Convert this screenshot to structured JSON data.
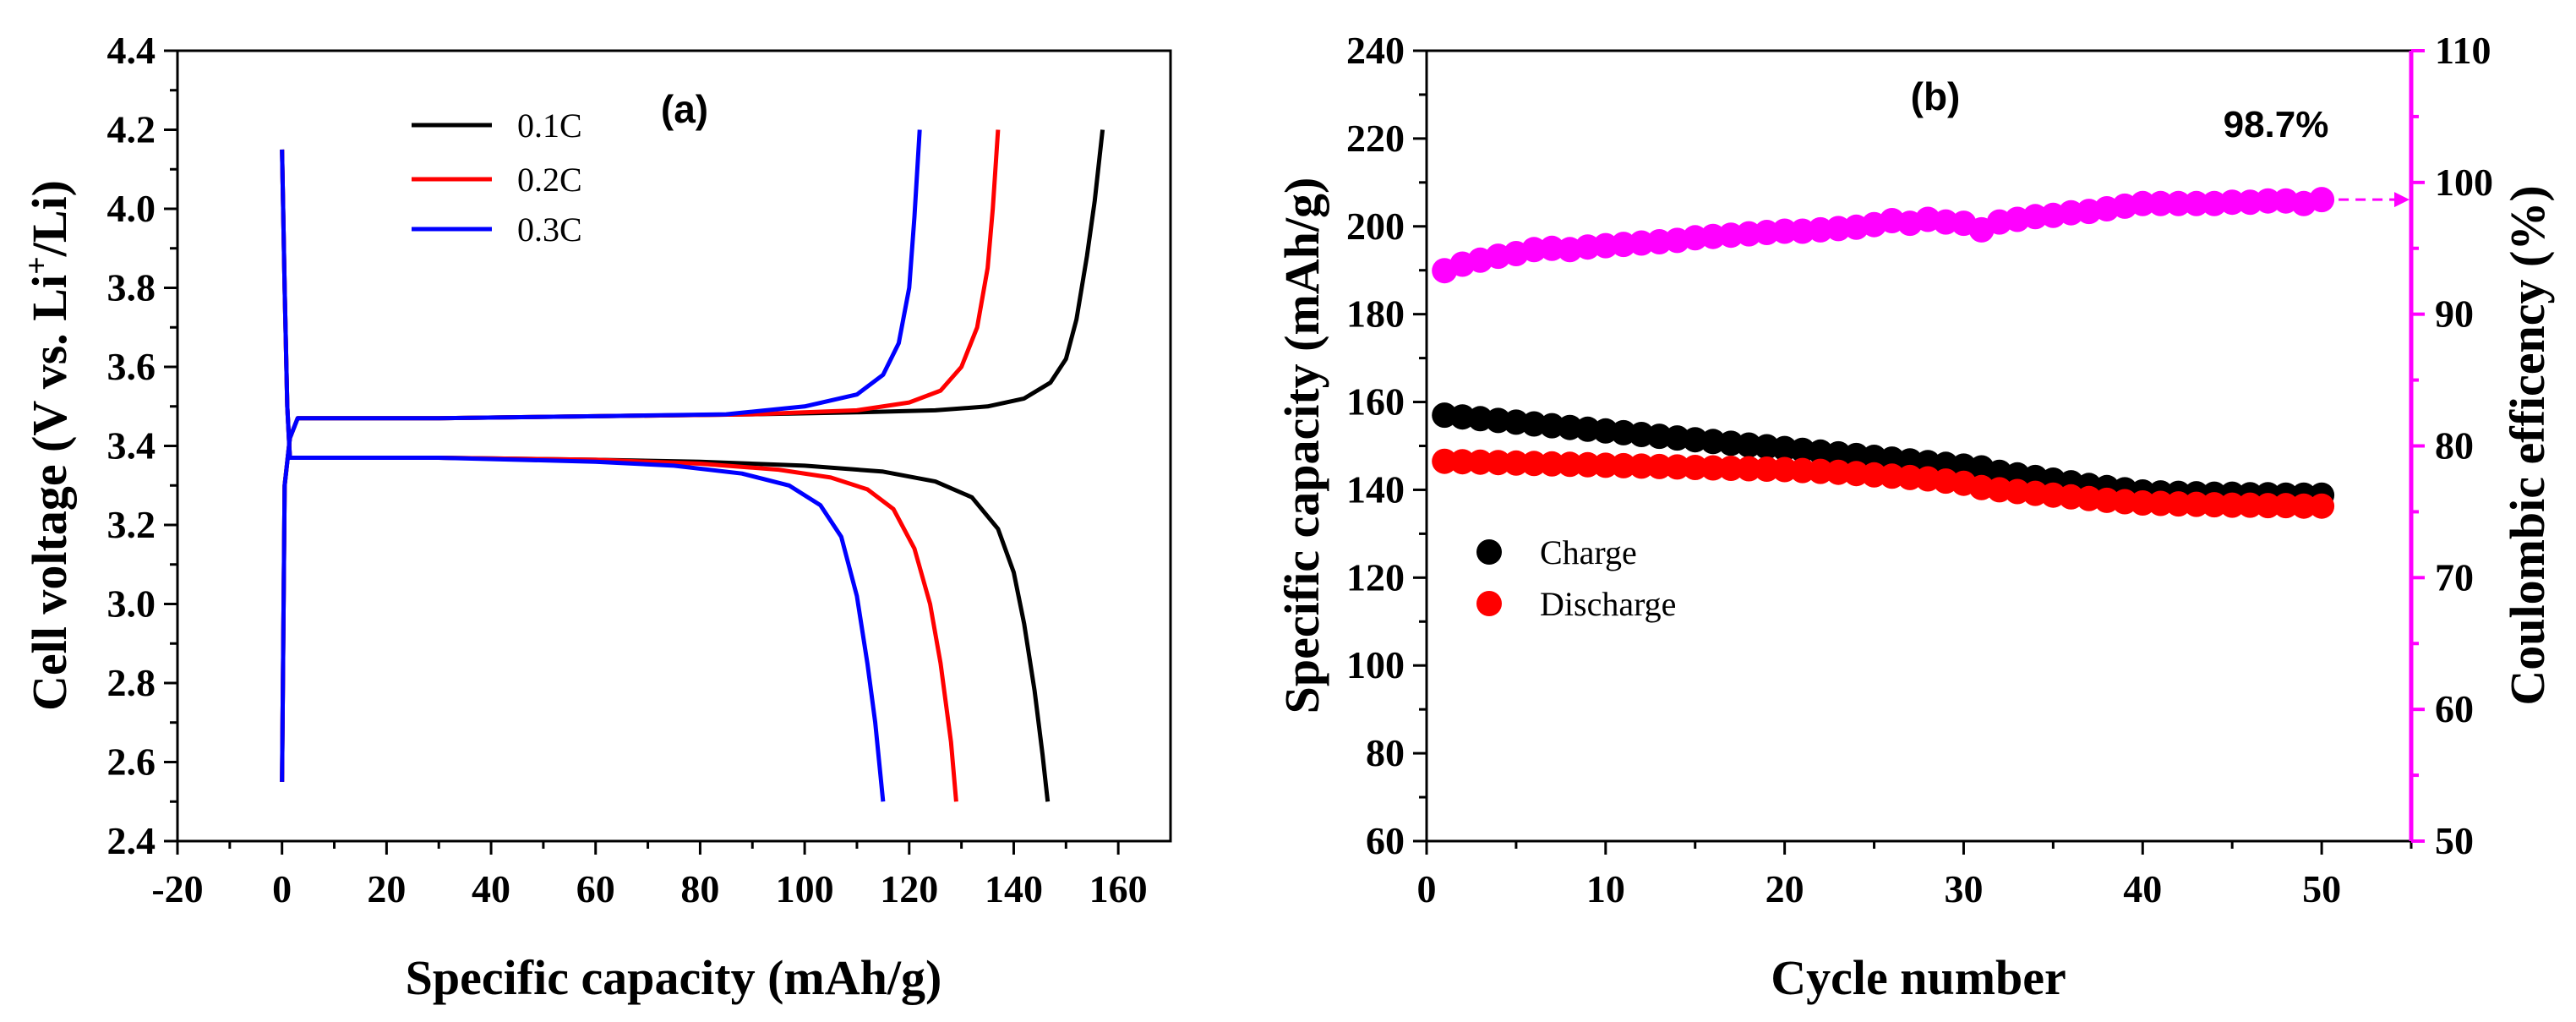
{
  "chart_data": [
    {
      "type": "line",
      "panel_label": "(a)",
      "xlabel": "Specific capacity (mAh/g)",
      "ylabel_main": "Cell voltage (V vs. Li",
      "ylabel_sup": "+",
      "ylabel_tail": "/Li)",
      "xlim": [
        -20,
        170
      ],
      "ylim": [
        2.4,
        4.4
      ],
      "xticks": [
        "-20",
        "0",
        "20",
        "40",
        "60",
        "80",
        "100",
        "120",
        "140",
        "160"
      ],
      "yticks": [
        "2.4",
        "2.6",
        "2.8",
        "3.0",
        "3.2",
        "3.4",
        "3.6",
        "3.8",
        "4.0",
        "4.2",
        "4.4"
      ],
      "xtick_values": [
        -20,
        0,
        20,
        40,
        60,
        80,
        100,
        120,
        140,
        160
      ],
      "ytick_values": [
        2.4,
        2.6,
        2.8,
        3.0,
        3.2,
        3.4,
        3.6,
        3.8,
        4.0,
        4.2,
        4.4
      ],
      "legend": {
        "position": "top-left"
      },
      "series": [
        {
          "name": "0.1C",
          "color": "#000000",
          "charge": {
            "x": [
              0,
              0.5,
              1.5,
              3,
              10,
              30,
              60,
              90,
              110,
              125,
              135,
              142,
              147,
              150,
              152,
              154,
              155.5,
              157
            ],
            "y": [
              2.55,
              3.3,
              3.42,
              3.47,
              3.47,
              3.47,
              3.475,
              3.48,
              3.485,
              3.49,
              3.5,
              3.52,
              3.56,
              3.62,
              3.72,
              3.88,
              4.02,
              4.2
            ]
          },
          "discharge": {
            "x": [
              0,
              0.5,
              1,
              1.5,
              3,
              10,
              30,
              60,
              80,
              100,
              115,
              125,
              132,
              137,
              140,
              142,
              144,
              145.5,
              146.5
            ],
            "y": [
              4.15,
              3.8,
              3.5,
              3.37,
              3.37,
              3.37,
              3.37,
              3.365,
              3.36,
              3.35,
              3.335,
              3.31,
              3.27,
              3.19,
              3.08,
              2.95,
              2.78,
              2.62,
              2.5
            ]
          }
        },
        {
          "name": "0.2C",
          "color": "#ff0000",
          "charge": {
            "x": [
              0,
              0.5,
              1.5,
              3,
              10,
              30,
              60,
              90,
              110,
              120,
              126,
              130,
              133,
              135,
              136,
              137
            ],
            "y": [
              2.55,
              3.3,
              3.42,
              3.47,
              3.47,
              3.47,
              3.475,
              3.48,
              3.49,
              3.51,
              3.54,
              3.6,
              3.7,
              3.85,
              4.0,
              4.2
            ]
          },
          "discharge": {
            "x": [
              0,
              0.5,
              1,
              1.5,
              3,
              10,
              30,
              60,
              80,
              95,
              105,
              112,
              117,
              121,
              124,
              126,
              128,
              129
            ],
            "y": [
              4.15,
              3.8,
              3.5,
              3.37,
              3.37,
              3.37,
              3.37,
              3.365,
              3.355,
              3.34,
              3.32,
              3.29,
              3.24,
              3.14,
              3.0,
              2.85,
              2.65,
              2.5
            ]
          }
        },
        {
          "name": "0.3C",
          "color": "#0000ff",
          "charge": {
            "x": [
              0,
              0.5,
              1.5,
              3,
              10,
              30,
              60,
              85,
              100,
              110,
              115,
              118,
              120,
              121,
              122
            ],
            "y": [
              2.55,
              3.3,
              3.42,
              3.47,
              3.47,
              3.47,
              3.475,
              3.48,
              3.5,
              3.53,
              3.58,
              3.66,
              3.8,
              3.98,
              4.2
            ]
          },
          "discharge": {
            "x": [
              0,
              0.5,
              1,
              1.5,
              3,
              10,
              30,
              60,
              75,
              88,
              97,
              103,
              107,
              110,
              112,
              113.5,
              115
            ],
            "y": [
              4.15,
              3.8,
              3.5,
              3.37,
              3.37,
              3.37,
              3.37,
              3.36,
              3.35,
              3.33,
              3.3,
              3.25,
              3.17,
              3.02,
              2.85,
              2.7,
              2.5
            ]
          }
        }
      ]
    },
    {
      "type": "scatter",
      "panel_label": "(b)",
      "xlabel": "Cycle number",
      "ylabel": "Specific capacity (mAh/g)",
      "ylabel_right": "Coulombic efficency (%)",
      "xlim": [
        0,
        55
      ],
      "ylim": [
        60,
        240
      ],
      "ylim_right": [
        50,
        110
      ],
      "xticks": [
        "0",
        "10",
        "20",
        "30",
        "40",
        "50"
      ],
      "yticks": [
        "60",
        "80",
        "100",
        "120",
        "140",
        "160",
        "180",
        "200",
        "220",
        "240"
      ],
      "yticks_right": [
        "50",
        "60",
        "70",
        "80",
        "90",
        "100",
        "110"
      ],
      "xtick_values": [
        0,
        10,
        20,
        30,
        40,
        50
      ],
      "ytick_values": [
        60,
        80,
        100,
        120,
        140,
        160,
        180,
        200,
        220,
        240
      ],
      "ytick_right_values": [
        50,
        60,
        70,
        80,
        90,
        100,
        110
      ],
      "right_axis_color": "#ff00ff",
      "annotation": "98.7%",
      "annotation_target": 98.7,
      "legend": {
        "position": "center-left"
      },
      "x": [
        1,
        2,
        3,
        4,
        5,
        6,
        7,
        8,
        9,
        10,
        11,
        12,
        13,
        14,
        15,
        16,
        17,
        18,
        19,
        20,
        21,
        22,
        23,
        24,
        25,
        26,
        27,
        28,
        29,
        30,
        31,
        32,
        33,
        34,
        35,
        36,
        37,
        38,
        39,
        40,
        41,
        42,
        43,
        44,
        45,
        46,
        47,
        48,
        49,
        50
      ],
      "series": [
        {
          "name": "Charge",
          "color": "#000000",
          "axis": "left",
          "values": [
            157,
            156.6,
            156.2,
            155.8,
            155.4,
            155,
            154.6,
            154.2,
            153.8,
            153.4,
            153,
            152.6,
            152.2,
            151.8,
            151.4,
            151,
            150.6,
            150.2,
            149.8,
            149.4,
            149,
            148.6,
            148.2,
            147.8,
            147.4,
            147,
            146.6,
            146.2,
            145.8,
            145.4,
            145,
            144,
            143.4,
            142.8,
            142.2,
            141.6,
            141,
            140.5,
            140,
            139.5,
            139.3,
            139.2,
            139.1,
            139,
            139,
            138.9,
            138.9,
            138.8,
            138.8,
            138.8
          ]
        },
        {
          "name": "Discharge",
          "color": "#ff0000",
          "axis": "left",
          "values": [
            146.5,
            146.4,
            146.3,
            146.2,
            146.1,
            146,
            145.9,
            145.8,
            145.7,
            145.6,
            145.5,
            145.4,
            145.3,
            145.2,
            145.1,
            145,
            144.9,
            144.8,
            144.7,
            144.6,
            144.4,
            144.2,
            144,
            143.7,
            143.4,
            143.1,
            142.8,
            142.5,
            142,
            141.5,
            140.5,
            140,
            139.6,
            139.2,
            138.8,
            138.4,
            138,
            137.6,
            137.3,
            137,
            136.9,
            136.8,
            136.7,
            136.6,
            136.5,
            136.5,
            136.4,
            136.4,
            136.3,
            136.3
          ]
        },
        {
          "name": "Coulombic efficiency",
          "color": "#ff00ff",
          "axis": "right",
          "values": [
            93.3,
            93.8,
            94.1,
            94.4,
            94.6,
            94.9,
            95.0,
            94.9,
            95.1,
            95.2,
            95.3,
            95.4,
            95.5,
            95.6,
            95.8,
            95.9,
            96.0,
            96.1,
            96.2,
            96.3,
            96.3,
            96.4,
            96.5,
            96.6,
            96.8,
            97.1,
            96.9,
            97.2,
            97.0,
            96.9,
            96.4,
            97.0,
            97.2,
            97.4,
            97.5,
            97.7,
            97.8,
            98.0,
            98.2,
            98.4,
            98.4,
            98.4,
            98.4,
            98.4,
            98.5,
            98.5,
            98.6,
            98.6,
            98.4,
            98.7
          ]
        }
      ]
    }
  ]
}
